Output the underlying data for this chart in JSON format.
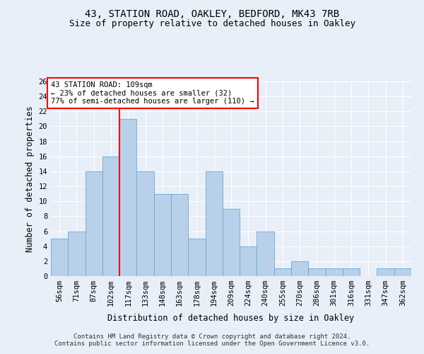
{
  "title1": "43, STATION ROAD, OAKLEY, BEDFORD, MK43 7RB",
  "title2": "Size of property relative to detached houses in Oakley",
  "xlabel": "Distribution of detached houses by size in Oakley",
  "ylabel": "Number of detached properties",
  "categories": [
    "56sqm",
    "71sqm",
    "87sqm",
    "102sqm",
    "117sqm",
    "133sqm",
    "148sqm",
    "163sqm",
    "178sqm",
    "194sqm",
    "209sqm",
    "224sqm",
    "240sqm",
    "255sqm",
    "270sqm",
    "286sqm",
    "301sqm",
    "316sqm",
    "331sqm",
    "347sqm",
    "362sqm"
  ],
  "values": [
    5,
    6,
    14,
    16,
    21,
    14,
    11,
    11,
    5,
    14,
    9,
    4,
    6,
    1,
    2,
    1,
    1,
    1,
    0,
    1,
    1
  ],
  "bar_color": "#b8d0ea",
  "bar_edge_color": "#6aaad4",
  "ylim": [
    0,
    26
  ],
  "yticks": [
    0,
    2,
    4,
    6,
    8,
    10,
    12,
    14,
    16,
    18,
    20,
    22,
    24,
    26
  ],
  "red_line_x": 3.5,
  "annotation_title": "43 STATION ROAD: 109sqm",
  "annotation_line1": "← 23% of detached houses are smaller (32)",
  "annotation_line2": "77% of semi-detached houses are larger (110) →",
  "footer1": "Contains HM Land Registry data © Crown copyright and database right 2024.",
  "footer2": "Contains public sector information licensed under the Open Government Licence v3.0.",
  "background_color": "#e8eff8",
  "grid_color": "#ffffff",
  "title1_fontsize": 10,
  "title2_fontsize": 9,
  "tick_fontsize": 7.5,
  "ylabel_fontsize": 8.5,
  "xlabel_fontsize": 8.5,
  "annotation_fontsize": 7.5,
  "footer_fontsize": 6.5
}
